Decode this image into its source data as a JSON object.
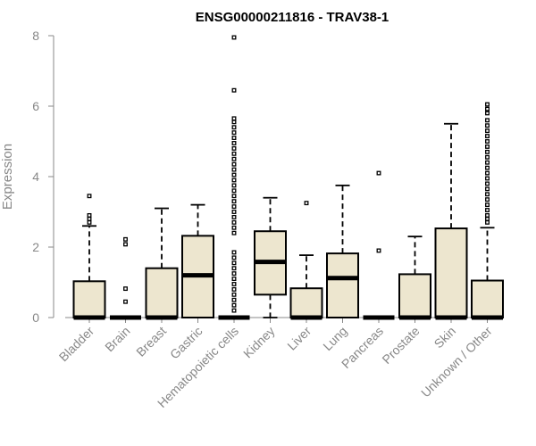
{
  "chart_data": {
    "type": "boxplot",
    "title": "ENSG00000211816 - TRAV38-1",
    "xlabel": "",
    "ylabel": "Expression",
    "ylim": [
      0,
      8
    ],
    "yticks": [
      0,
      2,
      4,
      6,
      8
    ],
    "categories": [
      "Bladder",
      "Brain",
      "Breast",
      "Gastric",
      "Hematopoietic cells",
      "Kidney",
      "Liver",
      "Lung",
      "Pancreas",
      "Prostate",
      "Skin",
      "Unknown / Other"
    ],
    "boxes": [
      {
        "category": "Bladder",
        "whisker_low": 0,
        "q1": 0,
        "median": 0,
        "q3": 1.03,
        "whisker_high": 2.6,
        "outliers": [
          2.7,
          2.8,
          2.9,
          3.45
        ]
      },
      {
        "category": "Brain",
        "whisker_low": 0,
        "q1": 0,
        "median": 0,
        "q3": 0,
        "whisker_high": 0,
        "outliers": [
          0.45,
          0.82,
          2.08,
          2.22
        ]
      },
      {
        "category": "Breast",
        "whisker_low": 0,
        "q1": 0,
        "median": 0,
        "q3": 1.4,
        "whisker_high": 3.1,
        "outliers": []
      },
      {
        "category": "Gastric",
        "whisker_low": 0,
        "q1": 0,
        "median": 1.2,
        "q3": 2.32,
        "whisker_high": 3.2,
        "outliers": []
      },
      {
        "category": "Hematopoietic cells",
        "whisker_low": 0,
        "q1": 0,
        "median": 0,
        "q3": 0,
        "whisker_high": 0,
        "outliers": [
          0.2,
          0.35,
          0.5,
          0.65,
          0.8,
          0.95,
          1.1,
          1.25,
          1.4,
          1.55,
          1.7,
          1.85,
          2.4,
          2.55,
          2.7,
          2.85,
          3.0,
          3.15,
          3.3,
          3.45,
          3.6,
          3.75,
          3.9,
          4.05,
          4.2,
          4.35,
          4.5,
          4.65,
          4.8,
          4.95,
          5.1,
          5.25,
          5.4,
          5.55,
          5.65,
          6.45,
          7.95
        ]
      },
      {
        "category": "Kidney",
        "whisker_low": 0,
        "q1": 0.65,
        "median": 1.58,
        "q3": 2.45,
        "whisker_high": 3.4,
        "outliers": []
      },
      {
        "category": "Liver",
        "whisker_low": 0,
        "q1": 0,
        "median": 0,
        "q3": 0.83,
        "whisker_high": 1.77,
        "outliers": [
          3.25
        ]
      },
      {
        "category": "Lung",
        "whisker_low": 0,
        "q1": 0,
        "median": 1.12,
        "q3": 1.82,
        "whisker_high": 3.75,
        "outliers": []
      },
      {
        "category": "Pancreas",
        "whisker_low": 0,
        "q1": 0,
        "median": 0,
        "q3": 0,
        "whisker_high": 0,
        "outliers": [
          1.9,
          4.1
        ]
      },
      {
        "category": "Prostate",
        "whisker_low": 0,
        "q1": 0,
        "median": 0,
        "q3": 1.23,
        "whisker_high": 2.3,
        "outliers": []
      },
      {
        "category": "Skin",
        "whisker_low": 0,
        "q1": 0,
        "median": 0,
        "q3": 2.53,
        "whisker_high": 5.5,
        "outliers": []
      },
      {
        "category": "Unknown / Other",
        "whisker_low": 0,
        "q1": 0,
        "median": 0,
        "q3": 1.05,
        "whisker_high": 2.55,
        "outliers": [
          2.7,
          2.8,
          2.9,
          3.05,
          3.2,
          3.35,
          3.5,
          3.65,
          3.8,
          3.95,
          4.1,
          4.25,
          4.4,
          4.55,
          4.7,
          4.85,
          5.0,
          5.15,
          5.3,
          5.45,
          5.6,
          5.8,
          5.92,
          6.05
        ]
      }
    ],
    "style": {
      "box_fill": "#ede6cf",
      "axis_color": "#888888",
      "line_color": "#000000"
    }
  }
}
